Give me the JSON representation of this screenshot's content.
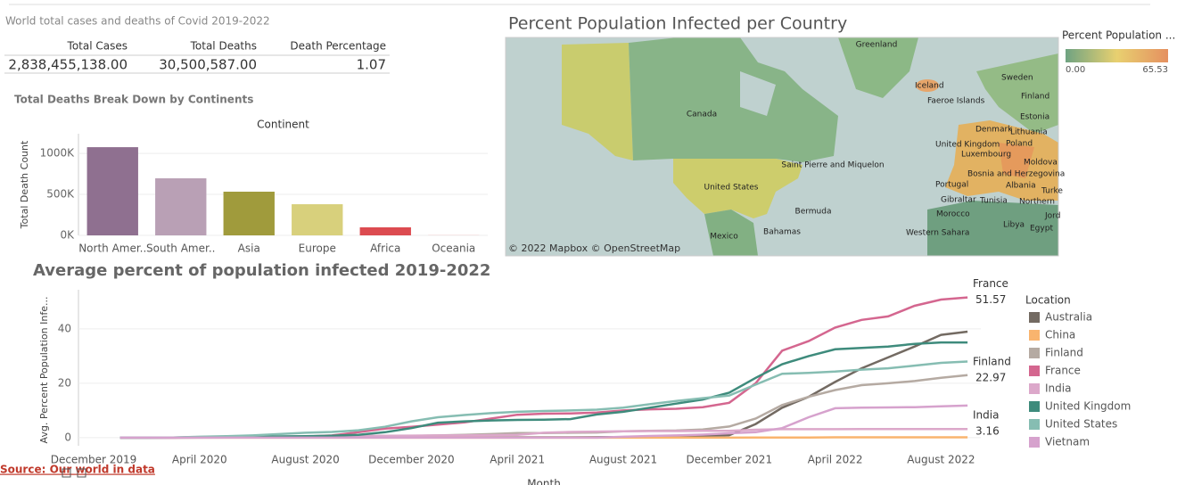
{
  "summary": {
    "title": "World total cases and deaths of Covid 2019-2022",
    "headers": [
      "Total Cases",
      "Total Deaths",
      "Death Percentage"
    ],
    "rows": [
      [
        "2,838,455,138.00",
        "30,500,587.00",
        "1.07"
      ]
    ]
  },
  "map": {
    "title": "Percent Population Infected per Country",
    "legend_title": "Percent Population ...",
    "legend_min": "0.00",
    "legend_max": "65.53",
    "attribution": "© 2022 Mapbox © OpenStreetMap",
    "labels": [
      "Greenland",
      "Iceland",
      "Faeroe Islands",
      "Sweden",
      "Finland",
      "Canada",
      "Estonia",
      "Denmark",
      "Lithuania",
      "United Kingdom",
      "Poland",
      "Luxembourg",
      "Moldova",
      "Saint Pierre and Miquelon",
      "Bosnia and Herzegovina",
      "Portugal",
      "Albania",
      "United States",
      "Turke",
      "Gibraltar",
      "Tunisia",
      "Northern",
      "Bermuda",
      "Morocco",
      "Jord",
      "Libya",
      "Egypt",
      "Bahamas",
      "Western Sahara",
      "Mexico"
    ]
  },
  "chart_data": [
    {
      "type": "bar",
      "title": "Total Deaths Break Down by Continents",
      "x_label": "Continent",
      "y_label": "Total Death Count",
      "categories": [
        "North Amer..",
        "South Amer..",
        "Asia",
        "Europe",
        "Africa",
        "Oceania"
      ],
      "values": [
        1076000,
        696000,
        533000,
        380000,
        98000,
        2000
      ],
      "colors": [
        "#8f7090",
        "#b9a0b5",
        "#a09b3c",
        "#d8d07c",
        "#dc4b50",
        "#f0a0a0"
      ],
      "ylim": [
        0,
        1240000
      ],
      "yticks": [
        {
          "value": 0,
          "label": "0K"
        },
        {
          "value": 500000,
          "label": "500K"
        },
        {
          "value": 1000000,
          "label": "1000K"
        }
      ],
      "grid": true
    },
    {
      "type": "line",
      "title": "Average percent of population infected 2019-2022",
      "x_label": "Month",
      "y_label": "Avg. Percent Population Infe...",
      "legend_title": "Location",
      "legend": "right",
      "categories": [
        "December 2019",
        null,
        null,
        null,
        "April 2020",
        null,
        null,
        null,
        "August 2020",
        null,
        null,
        null,
        "December 2020",
        null,
        null,
        null,
        "April 2021",
        null,
        null,
        null,
        "August 2021",
        null,
        null,
        null,
        "December 2021",
        null,
        null,
        null,
        "April 2022",
        null,
        null,
        null,
        "August 2022",
        null
      ],
      "ylim": [
        -3,
        54.4
      ],
      "yticks": [
        0,
        20,
        40
      ],
      "grid": true,
      "series": [
        {
          "name": "Australia",
          "color": "#736a62",
          "values": [
            null,
            0,
            0,
            0,
            0.03,
            0.03,
            0.03,
            0.05,
            0.1,
            0.1,
            0.1,
            0.1,
            0.1,
            0.1,
            0.1,
            0.1,
            0.1,
            0.1,
            0.1,
            0.15,
            0.2,
            0.4,
            0.6,
            0.7,
            0.9,
            5,
            11,
            15,
            20.5,
            25.5,
            29.5,
            33.5,
            37.8,
            39
          ]
        },
        {
          "name": "China",
          "color": "#f9b46e",
          "values": [
            null,
            0,
            0,
            0,
            0,
            0,
            0,
            0,
            0,
            0,
            0,
            0,
            0,
            0,
            0,
            0,
            0,
            0,
            0,
            0,
            0,
            0,
            0,
            0,
            0,
            0.01,
            0.01,
            0.01,
            0.1,
            0.1,
            0.1,
            0.1,
            0.1,
            0.1
          ]
        },
        {
          "name": "Finland",
          "color": "#b5aaa2",
          "label_end": true,
          "values": [
            null,
            0,
            0,
            0,
            0.05,
            0.1,
            0.13,
            0.13,
            0.14,
            0.17,
            0.25,
            0.4,
            0.6,
            0.8,
            1.0,
            1.3,
            1.7,
            1.7,
            1.8,
            1.9,
            2.3,
            2.5,
            2.6,
            3.0,
            4.1,
            7,
            12,
            15,
            17.5,
            19.3,
            20,
            20.8,
            22,
            22.97
          ]
        },
        {
          "name": "France",
          "color": "#d4668f",
          "label_end": true,
          "values": [
            null,
            0,
            0,
            0,
            0.1,
            0.2,
            0.3,
            0.3,
            0.4,
            0.8,
            2.0,
            3.3,
            4.0,
            4.8,
            5.6,
            7.0,
            8.4,
            8.8,
            8.9,
            9.2,
            10.0,
            10.4,
            10.6,
            11.2,
            12.8,
            20,
            32,
            35.5,
            40.5,
            43.3,
            44.6,
            48.5,
            50.8,
            51.57
          ]
        },
        {
          "name": "India",
          "color": "#dca8ca",
          "label_end": true,
          "values": [
            null,
            0,
            0,
            0,
            0,
            0.01,
            0.03,
            0.1,
            0.2,
            0.4,
            0.6,
            0.7,
            0.75,
            0.8,
            0.8,
            0.9,
            1.0,
            1.8,
            2.1,
            2.2,
            2.3,
            2.4,
            2.4,
            2.5,
            2.5,
            2.9,
            3.1,
            3.1,
            3.1,
            3.12,
            3.13,
            3.14,
            3.15,
            3.16
          ]
        },
        {
          "name": "United Kingdom",
          "color": "#3e8b7c",
          "values": [
            null,
            0,
            0,
            0.05,
            0.2,
            0.3,
            0.4,
            0.45,
            0.5,
            0.7,
            1.0,
            2.0,
            3.5,
            5.5,
            6.0,
            6.3,
            6.5,
            6.6,
            6.8,
            8.5,
            9.5,
            11,
            12.5,
            14,
            16.5,
            22,
            27,
            30,
            32.5,
            33,
            33.5,
            34.5,
            35,
            35
          ]
        },
        {
          "name": "United States",
          "color": "#86bdb2",
          "values": [
            null,
            0,
            0,
            0.05,
            0.3,
            0.5,
            0.8,
            1.3,
            1.8,
            2.1,
            2.7,
            4,
            6,
            7.5,
            8.3,
            9,
            9.5,
            9.8,
            10,
            10.3,
            11,
            12.3,
            13.5,
            14.5,
            15.5,
            19.5,
            23.5,
            23.8,
            24.3,
            25,
            25.5,
            26.5,
            27.5,
            28
          ]
        },
        {
          "name": "Vietnam",
          "color": "#d6a2cd",
          "values": [
            null,
            0,
            0,
            0,
            0,
            0,
            0,
            0,
            0,
            0,
            0,
            0,
            0,
            0,
            0,
            0,
            0,
            0,
            0,
            0,
            0.3,
            0.6,
            0.8,
            1.1,
            1.6,
            2.0,
            3.5,
            7.5,
            10.8,
            11,
            11.1,
            11.2,
            11.5,
            11.8
          ]
        }
      ]
    }
  ],
  "source": "Source: Our world in data"
}
